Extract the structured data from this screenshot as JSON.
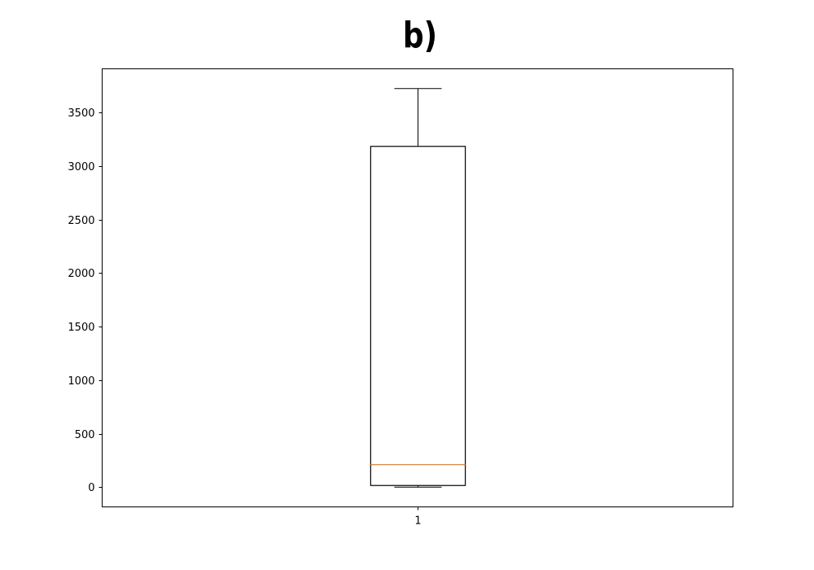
{
  "chart_data": {
    "type": "box",
    "title": "b)",
    "xlabel": "",
    "ylabel": "",
    "categories": [
      "1"
    ],
    "boxes": [
      {
        "category": "1",
        "whisker_low": 0,
        "q1": 15,
        "median": 210,
        "q3": 3185,
        "whisker_high": 3725
      }
    ],
    "ylim": [
      -185,
      3910
    ],
    "yticks": [
      0,
      500,
      1000,
      1500,
      2000,
      2500,
      3000,
      3500
    ],
    "grid": false,
    "colors": {
      "box": "#000000",
      "median": "#ff7f0e"
    }
  }
}
